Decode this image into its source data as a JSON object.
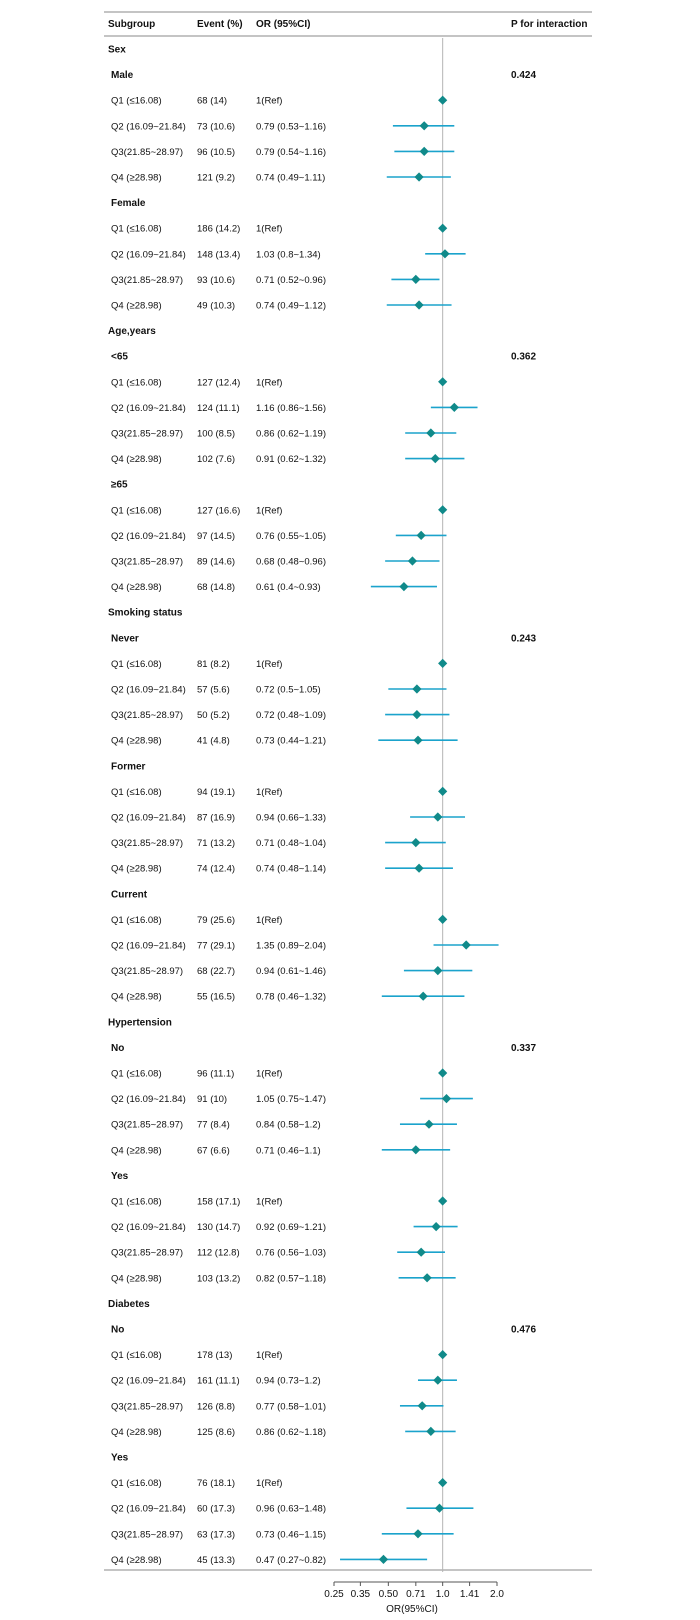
{
  "chart_data": {
    "type": "forest",
    "columns": {
      "subgroup": "Subgroup",
      "event": "Event (%)",
      "or": "OR (95%CI)",
      "p": "P for interaction"
    },
    "x_axis": {
      "label": "OR(95%CI)",
      "scale": "log",
      "range": [
        0.25,
        2.0
      ],
      "ticks": [
        0.25,
        0.35,
        0.5,
        0.71,
        1.0,
        1.41,
        2.0
      ],
      "tick_labels": [
        "0.25",
        "0.35",
        "0.50",
        "0.71",
        "1.0",
        "1.41",
        "2.0"
      ],
      "reference": 1.0
    },
    "colors": {
      "marker": "#108a8a",
      "ci": "#1ba3cc",
      "reference_line": "#b5b5b5",
      "rule": "#777777"
    },
    "rows": [
      {
        "kind": "category",
        "label": "Sex"
      },
      {
        "kind": "subgroup",
        "label": "Male",
        "p": "0.424"
      },
      {
        "kind": "data",
        "label": "Q1 (≤16.08)",
        "event": "68 (14)",
        "or_text": "1(Ref)",
        "or": 1.0,
        "lo": 1.0,
        "hi": 1.0
      },
      {
        "kind": "data",
        "label": "Q2 (16.09~21.84)",
        "event": "73 (10.6)",
        "or_text": "0.79 (0.53~1.16)",
        "or": 0.79,
        "lo": 0.53,
        "hi": 1.16
      },
      {
        "kind": "data",
        "label": "Q3(21.85~28.97)",
        "event": "96 (10.5)",
        "or_text": "0.79 (0.54~1.16)",
        "or": 0.79,
        "lo": 0.54,
        "hi": 1.16
      },
      {
        "kind": "data",
        "label": "Q4 (≥28.98)",
        "event": "121 (9.2)",
        "or_text": "0.74 (0.49~1.11)",
        "or": 0.74,
        "lo": 0.49,
        "hi": 1.11
      },
      {
        "kind": "subgroup",
        "label": "Female",
        "p": ""
      },
      {
        "kind": "data",
        "label": "Q1 (≤16.08)",
        "event": "186 (14.2)",
        "or_text": "1(Ref)",
        "or": 1.0,
        "lo": 1.0,
        "hi": 1.0
      },
      {
        "kind": "data",
        "label": "Q2 (16.09~21.84)",
        "event": "148 (13.4)",
        "or_text": "1.03 (0.8~1.34)",
        "or": 1.03,
        "lo": 0.8,
        "hi": 1.34
      },
      {
        "kind": "data",
        "label": "Q3(21.85~28.97)",
        "event": "93 (10.6)",
        "or_text": "0.71 (0.52~0.96)",
        "or": 0.71,
        "lo": 0.52,
        "hi": 0.96
      },
      {
        "kind": "data",
        "label": "Q4 (≥28.98)",
        "event": "49 (10.3)",
        "or_text": "0.74 (0.49~1.12)",
        "or": 0.74,
        "lo": 0.49,
        "hi": 1.12
      },
      {
        "kind": "category",
        "label": "Age,years"
      },
      {
        "kind": "subgroup",
        "label": "<65",
        "p": "0.362"
      },
      {
        "kind": "data",
        "label": "Q1 (≤16.08)",
        "event": "127 (12.4)",
        "or_text": "1(Ref)",
        "or": 1.0,
        "lo": 1.0,
        "hi": 1.0
      },
      {
        "kind": "data",
        "label": "Q2 (16.09~21.84)",
        "event": "124 (11.1)",
        "or_text": "1.16 (0.86~1.56)",
        "or": 1.16,
        "lo": 0.86,
        "hi": 1.56
      },
      {
        "kind": "data",
        "label": "Q3(21.85~28.97)",
        "event": "100 (8.5)",
        "or_text": "0.86 (0.62~1.19)",
        "or": 0.86,
        "lo": 0.62,
        "hi": 1.19
      },
      {
        "kind": "data",
        "label": "Q4 (≥28.98)",
        "event": "102 (7.6)",
        "or_text": "0.91 (0.62~1.32)",
        "or": 0.91,
        "lo": 0.62,
        "hi": 1.32
      },
      {
        "kind": "subgroup",
        "label": "≥65",
        "p": ""
      },
      {
        "kind": "data",
        "label": "Q1 (≤16.08)",
        "event": "127 (16.6)",
        "or_text": "1(Ref)",
        "or": 1.0,
        "lo": 1.0,
        "hi": 1.0
      },
      {
        "kind": "data",
        "label": "Q2 (16.09~21.84)",
        "event": "97 (14.5)",
        "or_text": "0.76 (0.55~1.05)",
        "or": 0.76,
        "lo": 0.55,
        "hi": 1.05
      },
      {
        "kind": "data",
        "label": "Q3(21.85~28.97)",
        "event": "89 (14.6)",
        "or_text": "0.68 (0.48~0.96)",
        "or": 0.68,
        "lo": 0.48,
        "hi": 0.96
      },
      {
        "kind": "data",
        "label": "Q4 (≥28.98)",
        "event": "68 (14.8)",
        "or_text": "0.61 (0.4~0.93)",
        "or": 0.61,
        "lo": 0.4,
        "hi": 0.93
      },
      {
        "kind": "category",
        "label": "Smoking status"
      },
      {
        "kind": "subgroup",
        "label": "Never",
        "p": "0.243"
      },
      {
        "kind": "data",
        "label": "Q1 (≤16.08)",
        "event": "81 (8.2)",
        "or_text": "1(Ref)",
        "or": 1.0,
        "lo": 1.0,
        "hi": 1.0
      },
      {
        "kind": "data",
        "label": "Q2 (16.09~21.84)",
        "event": "57 (5.6)",
        "or_text": "0.72 (0.5~1.05)",
        "or": 0.72,
        "lo": 0.5,
        "hi": 1.05
      },
      {
        "kind": "data",
        "label": "Q3(21.85~28.97)",
        "event": "50 (5.2)",
        "or_text": "0.72 (0.48~1.09)",
        "or": 0.72,
        "lo": 0.48,
        "hi": 1.09
      },
      {
        "kind": "data",
        "label": "Q4 (≥28.98)",
        "event": "41 (4.8)",
        "or_text": "0.73 (0.44~1.21)",
        "or": 0.73,
        "lo": 0.44,
        "hi": 1.21
      },
      {
        "kind": "subgroup",
        "label": "Former",
        "p": ""
      },
      {
        "kind": "data",
        "label": "Q1 (≤16.08)",
        "event": "94 (19.1)",
        "or_text": "1(Ref)",
        "or": 1.0,
        "lo": 1.0,
        "hi": 1.0
      },
      {
        "kind": "data",
        "label": "Q2 (16.09~21.84)",
        "event": "87 (16.9)",
        "or_text": "0.94 (0.66~1.33)",
        "or": 0.94,
        "lo": 0.66,
        "hi": 1.33
      },
      {
        "kind": "data",
        "label": "Q3(21.85~28.97)",
        "event": "71 (13.2)",
        "or_text": "0.71 (0.48~1.04)",
        "or": 0.71,
        "lo": 0.48,
        "hi": 1.04
      },
      {
        "kind": "data",
        "label": "Q4 (≥28.98)",
        "event": "74 (12.4)",
        "or_text": "0.74 (0.48~1.14)",
        "or": 0.74,
        "lo": 0.48,
        "hi": 1.14
      },
      {
        "kind": "subgroup",
        "label": "Current",
        "p": ""
      },
      {
        "kind": "data",
        "label": "Q1 (≤16.08)",
        "event": "79 (25.6)",
        "or_text": "1(Ref)",
        "or": 1.0,
        "lo": 1.0,
        "hi": 1.0
      },
      {
        "kind": "data",
        "label": "Q2 (16.09~21.84)",
        "event": "77 (29.1)",
        "or_text": "1.35 (0.89~2.04)",
        "or": 1.35,
        "lo": 0.89,
        "hi": 2.04
      },
      {
        "kind": "data",
        "label": "Q3(21.85~28.97)",
        "event": "68 (22.7)",
        "or_text": "0.94 (0.61~1.46)",
        "or": 0.94,
        "lo": 0.61,
        "hi": 1.46
      },
      {
        "kind": "data",
        "label": "Q4 (≥28.98)",
        "event": "55 (16.5)",
        "or_text": "0.78 (0.46~1.32)",
        "or": 0.78,
        "lo": 0.46,
        "hi": 1.32
      },
      {
        "kind": "category",
        "label": "Hypertension"
      },
      {
        "kind": "subgroup",
        "label": "No",
        "p": "0.337"
      },
      {
        "kind": "data",
        "label": "Q1 (≤16.08)",
        "event": "96 (11.1)",
        "or_text": "1(Ref)",
        "or": 1.0,
        "lo": 1.0,
        "hi": 1.0
      },
      {
        "kind": "data",
        "label": "Q2 (16.09~21.84)",
        "event": "91 (10)",
        "or_text": "1.05 (0.75~1.47)",
        "or": 1.05,
        "lo": 0.75,
        "hi": 1.47
      },
      {
        "kind": "data",
        "label": "Q3(21.85~28.97)",
        "event": "77 (8.4)",
        "or_text": "0.84 (0.58~1.2)",
        "or": 0.84,
        "lo": 0.58,
        "hi": 1.2
      },
      {
        "kind": "data",
        "label": "Q4 (≥28.98)",
        "event": "67 (6.6)",
        "or_text": "0.71 (0.46~1.1)",
        "or": 0.71,
        "lo": 0.46,
        "hi": 1.1
      },
      {
        "kind": "subgroup",
        "label": "Yes",
        "p": ""
      },
      {
        "kind": "data",
        "label": "Q1 (≤16.08)",
        "event": "158 (17.1)",
        "or_text": "1(Ref)",
        "or": 1.0,
        "lo": 1.0,
        "hi": 1.0
      },
      {
        "kind": "data",
        "label": "Q2 (16.09~21.84)",
        "event": "130 (14.7)",
        "or_text": "0.92 (0.69~1.21)",
        "or": 0.92,
        "lo": 0.69,
        "hi": 1.21
      },
      {
        "kind": "data",
        "label": "Q3(21.85~28.97)",
        "event": "112 (12.8)",
        "or_text": "0.76 (0.56~1.03)",
        "or": 0.76,
        "lo": 0.56,
        "hi": 1.03
      },
      {
        "kind": "data",
        "label": "Q4 (≥28.98)",
        "event": "103 (13.2)",
        "or_text": "0.82 (0.57~1.18)",
        "or": 0.82,
        "lo": 0.57,
        "hi": 1.18
      },
      {
        "kind": "category",
        "label": "Diabetes"
      },
      {
        "kind": "subgroup",
        "label": "No",
        "p": "0.476"
      },
      {
        "kind": "data",
        "label": "Q1 (≤16.08)",
        "event": "178 (13)",
        "or_text": "1(Ref)",
        "or": 1.0,
        "lo": 1.0,
        "hi": 1.0
      },
      {
        "kind": "data",
        "label": "Q2 (16.09~21.84)",
        "event": "161 (11.1)",
        "or_text": "0.94 (0.73~1.2)",
        "or": 0.94,
        "lo": 0.73,
        "hi": 1.2
      },
      {
        "kind": "data",
        "label": "Q3(21.85~28.97)",
        "event": "126 (8.8)",
        "or_text": "0.77 (0.58~1.01)",
        "or": 0.77,
        "lo": 0.58,
        "hi": 1.01
      },
      {
        "kind": "data",
        "label": "Q4 (≥28.98)",
        "event": "125 (8.6)",
        "or_text": "0.86 (0.62~1.18)",
        "or": 0.86,
        "lo": 0.62,
        "hi": 1.18
      },
      {
        "kind": "subgroup",
        "label": "Yes",
        "p": ""
      },
      {
        "kind": "data",
        "label": "Q1 (≤16.08)",
        "event": "76 (18.1)",
        "or_text": "1(Ref)",
        "or": 1.0,
        "lo": 1.0,
        "hi": 1.0
      },
      {
        "kind": "data",
        "label": "Q2 (16.09~21.84)",
        "event": "60 (17.3)",
        "or_text": "0.96 (0.63~1.48)",
        "or": 0.96,
        "lo": 0.63,
        "hi": 1.48
      },
      {
        "kind": "data",
        "label": "Q3(21.85~28.97)",
        "event": "63 (17.3)",
        "or_text": "0.73 (0.46~1.15)",
        "or": 0.73,
        "lo": 0.46,
        "hi": 1.15
      },
      {
        "kind": "data",
        "label": "Q4 (≥28.98)",
        "event": "45 (13.3)",
        "or_text": "0.47 (0.27~0.82)",
        "or": 0.47,
        "lo": 0.27,
        "hi": 0.82
      }
    ]
  }
}
